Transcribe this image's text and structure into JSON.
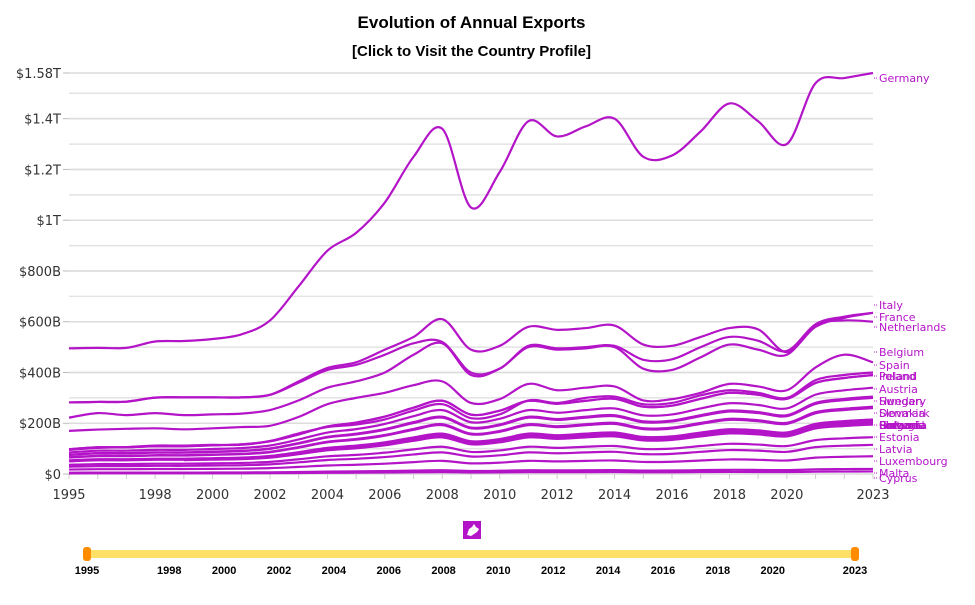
{
  "chart_data": {
    "type": "line",
    "title": "Evolution of Annual Exports",
    "subtitle": "[Click to Visit the Country Profile]",
    "xlabel": "",
    "ylabel": "",
    "ylim": [
      0,
      1580
    ],
    "y_unit": "billion USD",
    "y_ticks": [
      {
        "value": 0,
        "label": "$0"
      },
      {
        "value": 200,
        "label": "$200B"
      },
      {
        "value": 400,
        "label": "$400B"
      },
      {
        "value": 600,
        "label": "$600B"
      },
      {
        "value": 800,
        "label": "$800B"
      },
      {
        "value": 1000,
        "label": "$1T"
      },
      {
        "value": 1200,
        "label": "$1.2T"
      },
      {
        "value": 1400,
        "label": "$1.4T"
      },
      {
        "value": 1580,
        "label": "$1.58T"
      }
    ],
    "grid": true,
    "x_ticks": [
      "1995",
      "1998",
      "2000",
      "2002",
      "2004",
      "2006",
      "2008",
      "2010",
      "2012",
      "2014",
      "2016",
      "2018",
      "2020",
      "2023"
    ],
    "x": [
      1995,
      1996,
      1997,
      1998,
      1999,
      2000,
      2001,
      2002,
      2003,
      2004,
      2005,
      2006,
      2007,
      2008,
      2009,
      2010,
      2011,
      2012,
      2013,
      2014,
      2015,
      2016,
      2017,
      2018,
      2019,
      2020,
      2021,
      2022,
      2023
    ],
    "line_color": "#b414c8",
    "series": [
      {
        "name": "Germany",
        "values": [
          495,
          497,
          497,
          522,
          524,
          532,
          550,
          605,
          740,
          880,
          950,
          1070,
          1250,
          1360,
          1050,
          1190,
          1390,
          1330,
          1370,
          1400,
          1250,
          1255,
          1350,
          1460,
          1390,
          1300,
          1540,
          1560,
          1580
        ]
      },
      {
        "name": "Italy",
        "values": [
          282,
          284,
          285,
          301,
          302,
          302,
          302,
          312,
          365,
          418,
          440,
          490,
          540,
          610,
          490,
          505,
          580,
          568,
          575,
          585,
          510,
          505,
          540,
          575,
          570,
          480,
          580,
          615,
          635
        ]
      },
      {
        "name": "France",
        "values": [
          282,
          284,
          285,
          301,
          302,
          302,
          302,
          312,
          360,
          410,
          430,
          470,
          515,
          520,
          400,
          415,
          505,
          495,
          500,
          505,
          450,
          452,
          500,
          540,
          525,
          485,
          590,
          620,
          635
        ]
      },
      {
        "name": "Netherlands",
        "values": [
          222,
          240,
          232,
          240,
          232,
          235,
          238,
          252,
          290,
          340,
          365,
          400,
          470,
          515,
          390,
          415,
          500,
          490,
          495,
          500,
          415,
          410,
          460,
          510,
          490,
          470,
          585,
          605,
          600
        ]
      },
      {
        "name": "Belgium",
        "values": [
          170,
          175,
          178,
          180,
          176,
          180,
          185,
          190,
          225,
          275,
          300,
          320,
          350,
          365,
          280,
          295,
          355,
          330,
          340,
          345,
          290,
          295,
          320,
          355,
          345,
          330,
          420,
          470,
          440
        ]
      },
      {
        "name": "Spain",
        "values": [
          95,
          103,
          106,
          112,
          112,
          115,
          115,
          130,
          160,
          185,
          195,
          215,
          250,
          275,
          220,
          235,
          290,
          280,
          300,
          305,
          275,
          280,
          310,
          330,
          320,
          300,
          370,
          390,
          400
        ]
      },
      {
        "name": "Poland",
        "values": [
          null,
          null,
          null,
          null,
          null,
          null,
          null,
          null,
          null,
          null,
          null,
          null,
          null,
          null,
          null,
          null,
          null,
          null,
          null,
          null,
          null,
          null,
          null,
          null,
          null,
          null,
          null,
          null,
          null
        ]
      },
      {
        "name": "Ireland",
        "values": [
          null,
          null,
          null,
          null,
          null,
          null,
          null,
          null,
          null,
          null,
          null,
          null,
          null,
          null,
          null,
          null,
          null,
          null,
          null,
          null,
          null,
          null,
          null,
          null,
          null,
          null,
          null,
          null,
          null
        ]
      },
      {
        "name": "Austria",
        "values": [
          null,
          null,
          null,
          null,
          null,
          null,
          null,
          null,
          null,
          null,
          null,
          null,
          null,
          null,
          null,
          null,
          null,
          null,
          null,
          null,
          null,
          null,
          null,
          null,
          null,
          null,
          null,
          null,
          null
        ]
      },
      {
        "name": "Sweden",
        "values": [
          null,
          null,
          null,
          null,
          null,
          null,
          null,
          null,
          null,
          null,
          null,
          null,
          null,
          null,
          null,
          null,
          null,
          null,
          null,
          null,
          null,
          null,
          null,
          null,
          null,
          null,
          null,
          null,
          null
        ]
      },
      {
        "name": "Hungary",
        "values": [
          null,
          null,
          null,
          null,
          null,
          null,
          null,
          null,
          null,
          null,
          null,
          null,
          null,
          null,
          null,
          null,
          null,
          null,
          null,
          null,
          null,
          null,
          null,
          null,
          null,
          null,
          null,
          null,
          null
        ]
      },
      {
        "name": "Denmark",
        "values": [
          null,
          null,
          null,
          null,
          null,
          null,
          null,
          null,
          null,
          null,
          null,
          null,
          null,
          null,
          null,
          null,
          null,
          null,
          null,
          null,
          null,
          null,
          null,
          null,
          null,
          null,
          null,
          null,
          null
        ]
      },
      {
        "name": "Slovakia",
        "values": [
          null,
          null,
          null,
          null,
          null,
          null,
          null,
          null,
          null,
          null,
          null,
          null,
          null,
          null,
          null,
          null,
          null,
          null,
          null,
          null,
          null,
          null,
          null,
          null,
          null,
          null,
          null,
          null,
          null
        ]
      },
      {
        "name": "Finland",
        "values": [
          null,
          null,
          null,
          null,
          null,
          null,
          null,
          null,
          null,
          null,
          null,
          null,
          null,
          null,
          null,
          null,
          null,
          null,
          null,
          null,
          null,
          null,
          null,
          null,
          null,
          null,
          null,
          null,
          null
        ]
      },
      {
        "name": "Portugal",
        "values": [
          null,
          null,
          null,
          null,
          null,
          null,
          null,
          null,
          null,
          null,
          null,
          null,
          null,
          null,
          null,
          null,
          null,
          null,
          null,
          null,
          null,
          null,
          null,
          null,
          null,
          null,
          null,
          null,
          null
        ]
      },
      {
        "name": "Romania",
        "values": [
          null,
          null,
          null,
          null,
          null,
          null,
          null,
          null,
          null,
          null,
          null,
          null,
          null,
          null,
          null,
          null,
          null,
          null,
          null,
          null,
          null,
          null,
          null,
          null,
          null,
          null,
          null,
          null,
          null
        ]
      },
      {
        "name": "Slovenia",
        "values": [
          null,
          null,
          null,
          null,
          null,
          null,
          null,
          null,
          null,
          null,
          null,
          null,
          null,
          null,
          null,
          null,
          null,
          null,
          null,
          null,
          null,
          null,
          null,
          null,
          null,
          null,
          null,
          null,
          null
        ]
      },
      {
        "name": "Greece",
        "values": [
          null,
          null,
          null,
          null,
          null,
          null,
          null,
          null,
          null,
          null,
          null,
          null,
          null,
          null,
          null,
          null,
          null,
          null,
          null,
          null,
          null,
          null,
          null,
          null,
          null,
          null,
          null,
          null,
          null
        ]
      },
      {
        "name": "Bulgaria",
        "values": [
          null,
          null,
          null,
          null,
          null,
          null,
          null,
          null,
          null,
          null,
          null,
          null,
          null,
          null,
          null,
          null,
          null,
          null,
          null,
          null,
          null,
          null,
          null,
          null,
          null,
          null,
          null,
          null,
          null
        ]
      },
      {
        "name": "Estonia",
        "values": [
          null,
          null,
          null,
          null,
          null,
          null,
          null,
          null,
          null,
          null,
          null,
          null,
          null,
          null,
          null,
          null,
          null,
          null,
          null,
          null,
          null,
          null,
          null,
          null,
          null,
          null,
          null,
          null,
          null
        ]
      },
      {
        "name": "Latvia",
        "values": [
          null,
          null,
          null,
          null,
          null,
          null,
          null,
          null,
          null,
          null,
          null,
          null,
          null,
          null,
          null,
          null,
          null,
          null,
          null,
          null,
          null,
          null,
          null,
          null,
          null,
          null,
          null,
          null,
          null
        ]
      },
      {
        "name": "Luxembourg",
        "values": [
          null,
          null,
          null,
          null,
          null,
          null,
          null,
          null,
          null,
          null,
          null,
          null,
          null,
          null,
          null,
          null,
          null,
          null,
          null,
          null,
          null,
          null,
          null,
          null,
          null,
          null,
          null,
          null,
          null
        ]
      },
      {
        "name": "Malta",
        "values": [
          null,
          null,
          null,
          null,
          null,
          null,
          null,
          null,
          null,
          null,
          null,
          null,
          null,
          null,
          null,
          null,
          null,
          null,
          null,
          null,
          null,
          null,
          null,
          null,
          null,
          null,
          null,
          null,
          null
        ]
      },
      {
        "name": "Cyprus",
        "values": [
          null,
          null,
          null,
          null,
          null,
          null,
          null,
          null,
          null,
          null,
          null,
          null,
          null,
          null,
          null,
          null,
          null,
          null,
          null,
          null,
          null,
          null,
          null,
          null,
          null,
          null,
          null,
          null,
          null
        ]
      }
    ],
    "legend": "end-of-line labels (right)"
  },
  "slider": {
    "icon": "eu-map-icon",
    "range_start": "1995",
    "range_end": "2023",
    "ticks": [
      "1995",
      "1998",
      "2000",
      "2002",
      "2004",
      "2006",
      "2008",
      "2010",
      "2012",
      "2014",
      "2016",
      "2018",
      "2020",
      "2023"
    ],
    "track_color": "#ffe066",
    "handle_color": "#ff8c00"
  }
}
